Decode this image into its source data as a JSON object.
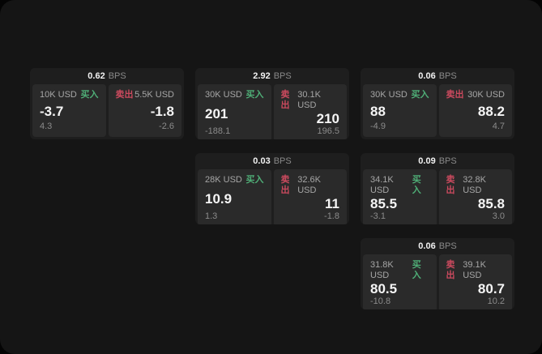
{
  "theme": {
    "buy_color": "#4fae77",
    "sell_color": "#cb4a5e",
    "panel_bg": "#151515",
    "card_bg": "#1e1e1e",
    "subpanel_bg": "#2a2a2a"
  },
  "cards": [
    {
      "bps_value": "0.62",
      "bps_unit": "BPS",
      "buy": {
        "amount": "10K USD",
        "side_label": "买入",
        "price": "-3.7",
        "delta": "4.3"
      },
      "sell": {
        "side_label": "卖出",
        "amount": "5.5K USD",
        "price": "-1.8",
        "delta": "-2.6"
      }
    },
    {
      "bps_value": "2.92",
      "bps_unit": "BPS",
      "buy": {
        "amount": "30K USD",
        "side_label": "买入",
        "price": "201",
        "delta": "-188.1"
      },
      "sell": {
        "side_label": "卖出",
        "amount": "30.1K USD",
        "price": "210",
        "delta": "196.5"
      }
    },
    {
      "bps_value": "0.06",
      "bps_unit": "BPS",
      "buy": {
        "amount": "30K USD",
        "side_label": "买入",
        "price": "88",
        "delta": "-4.9"
      },
      "sell": {
        "side_label": "卖出",
        "amount": "30K USD",
        "price": "88.2",
        "delta": "4.7"
      }
    },
    {
      "bps_value": "0.03",
      "bps_unit": "BPS",
      "buy": {
        "amount": "28K USD",
        "side_label": "买入",
        "price": "10.9",
        "delta": "1.3"
      },
      "sell": {
        "side_label": "卖出",
        "amount": "32.6K USD",
        "price": "11",
        "delta": "-1.8"
      }
    },
    {
      "bps_value": "0.09",
      "bps_unit": "BPS",
      "buy": {
        "amount": "34.1K USD",
        "side_label": "买入",
        "price": "85.5",
        "delta": "-3.1"
      },
      "sell": {
        "side_label": "卖出",
        "amount": "32.8K USD",
        "price": "85.8",
        "delta": "3.0"
      }
    },
    {
      "bps_value": "0.06",
      "bps_unit": "BPS",
      "buy": {
        "amount": "31.8K USD",
        "side_label": "买入",
        "price": "80.5",
        "delta": "-10.8"
      },
      "sell": {
        "side_label": "卖出",
        "amount": "39.1K USD",
        "price": "80.7",
        "delta": "10.2"
      }
    }
  ]
}
